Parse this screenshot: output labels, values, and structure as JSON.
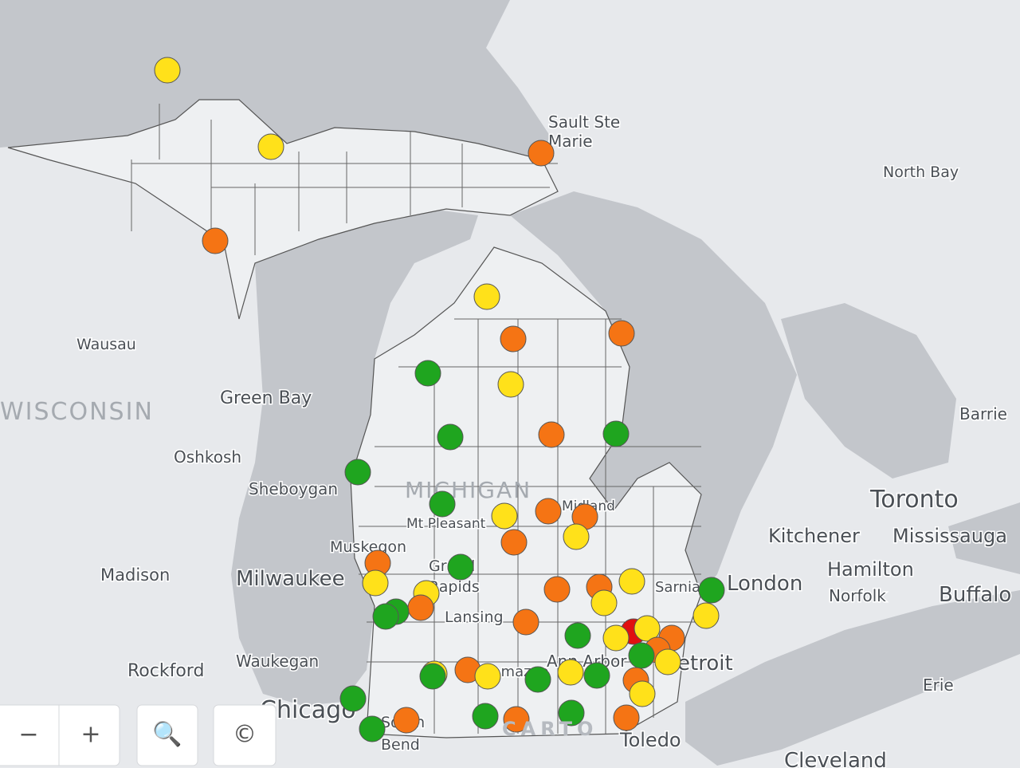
{
  "map": {
    "labels": [
      "Sault Ste",
      "Marie",
      "North Bay",
      "Wausau",
      "Green Bay",
      "WISCONSIN",
      "Oshkosh",
      "Sheboygan",
      "MICHIGAN",
      "Midland",
      "Mt Pleasant",
      "Muskegon",
      "Grand",
      "Rapids",
      "Lansing",
      "Madison",
      "Milwaukee",
      "Waukegan",
      "Rockford",
      "Chicago",
      "South",
      "Bend",
      "Kalamazoo",
      "Ann Arbor",
      "Detroit",
      "Toledo",
      "Cleveland",
      "Toronto",
      "Kitchener",
      "Mississauga",
      "Hamilton",
      "London",
      "Norfolk",
      "Buffalo",
      "Sarnia",
      "Barrie",
      "Erie"
    ],
    "watermark": "CARTO",
    "controls": {
      "zoom_out": "−",
      "zoom_in": "+",
      "search": "🔍",
      "attribution": "©"
    }
  }
}
